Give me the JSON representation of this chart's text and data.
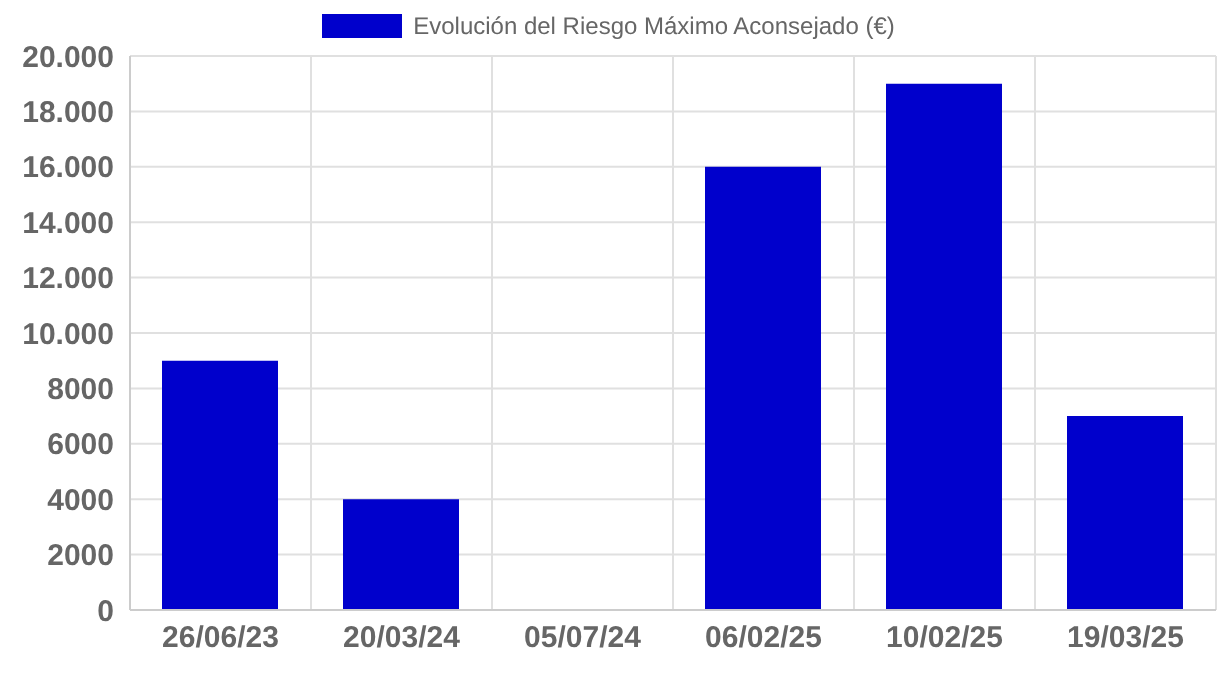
{
  "chart_data": {
    "type": "bar",
    "categories": [
      "26/06/23",
      "20/03/24",
      "05/07/24",
      "06/02/25",
      "10/02/25",
      "19/03/25"
    ],
    "series": [
      {
        "name": "Evolución del Riesgo Máximo Aconsejado (€)",
        "color": "#0000cc",
        "values": [
          9000,
          4000,
          0,
          16000,
          19000,
          7000
        ]
      }
    ],
    "ylim": [
      0,
      20000
    ],
    "yticks": [
      0,
      2000,
      4000,
      6000,
      8000,
      {
        "value": 10000,
        "label": "10.000"
      },
      {
        "value": 12000,
        "label": "12.000"
      },
      {
        "value": 14000,
        "label": "14.000"
      },
      {
        "value": 16000,
        "label": "16.000"
      },
      {
        "value": 18000,
        "label": "18.000"
      },
      {
        "value": 20000,
        "label": "20.000"
      }
    ],
    "grid": true,
    "legend": "top"
  }
}
